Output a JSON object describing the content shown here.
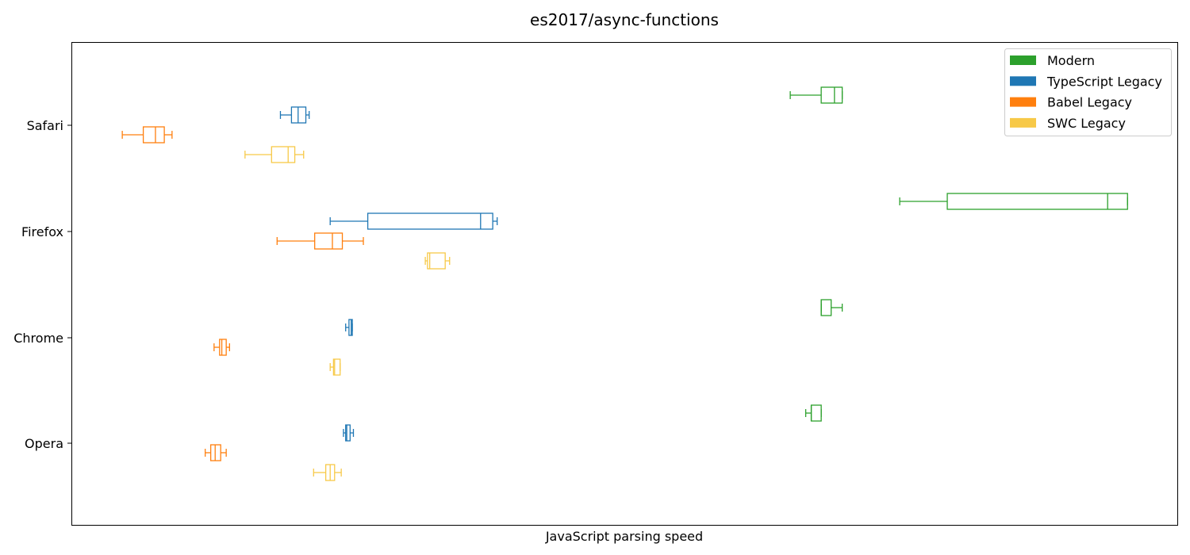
{
  "chart_data": {
    "type": "boxplot-horizontal",
    "title": "es2017/async-functions",
    "xlabel": "JavaScript parsing speed",
    "ylabel": "",
    "xlim": [
      0,
      1000
    ],
    "x_ticks_shown": false,
    "grid": false,
    "legend_position": "top-right",
    "categories": [
      "Safari",
      "Firefox",
      "Chrome",
      "Opera"
    ],
    "series": [
      {
        "name": "Modern",
        "color": "#2ca02c",
        "boxes": [
          {
            "min": 650,
            "q1": 678,
            "median": 690,
            "q3": 697,
            "max": 697
          },
          {
            "min": 749,
            "q1": 792,
            "median": 937,
            "q3": 955,
            "max": 955
          },
          {
            "min": 678,
            "q1": 678,
            "median": 678,
            "q3": 687,
            "max": 697
          },
          {
            "min": 664,
            "q1": 669,
            "median": 669,
            "q3": 678,
            "max": 678
          }
        ]
      },
      {
        "name": "TypeScript Legacy",
        "color": "#1f77b4",
        "boxes": [
          {
            "min": 189,
            "q1": 199,
            "median": 205,
            "q3": 212,
            "max": 215
          },
          {
            "min": 234,
            "q1": 268,
            "median": 370,
            "q3": 381,
            "max": 385
          },
          {
            "min": 248,
            "q1": 251,
            "median": 253,
            "q3": 254,
            "max": 254
          },
          {
            "min": 246,
            "q1": 248,
            "median": 249,
            "q3": 252,
            "max": 255
          }
        ]
      },
      {
        "name": "Babel Legacy",
        "color": "#ff7f0e",
        "boxes": [
          {
            "min": 46,
            "q1": 65,
            "median": 76,
            "q3": 84,
            "max": 91
          },
          {
            "min": 186,
            "q1": 220,
            "median": 236,
            "q3": 245,
            "max": 264
          },
          {
            "min": 129,
            "q1": 134,
            "median": 136,
            "q3": 140,
            "max": 143
          },
          {
            "min": 121,
            "q1": 126,
            "median": 130,
            "q3": 135,
            "max": 140
          }
        ]
      },
      {
        "name": "SWC Legacy",
        "color": "#f7c948",
        "boxes": [
          {
            "min": 157,
            "q1": 181,
            "median": 196,
            "q3": 202,
            "max": 210
          },
          {
            "min": 320,
            "q1": 322,
            "median": 324,
            "q3": 338,
            "max": 342
          },
          {
            "min": 234,
            "q1": 237,
            "median": 238,
            "q3": 243,
            "max": 243
          },
          {
            "min": 219,
            "q1": 230,
            "median": 234,
            "q3": 238,
            "max": 244
          }
        ]
      }
    ]
  }
}
